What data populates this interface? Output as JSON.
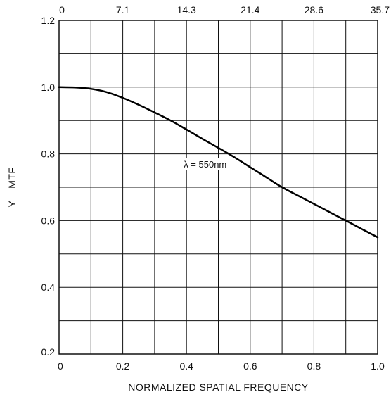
{
  "chart_data": {
    "type": "line",
    "title": "",
    "xlabel": "NORMALIZED SPATIAL FREQUENCY",
    "ylabel": "Y – MTF",
    "xlim": [
      0,
      1.0
    ],
    "ylim": [
      0.2,
      1.2
    ],
    "grid": true,
    "x_ticks": [
      0,
      0.1,
      0.2,
      0.3,
      0.4,
      0.5,
      0.6,
      0.7,
      0.8,
      0.9,
      1.0
    ],
    "x_tick_labels": [
      "0",
      "0.2",
      "0.4",
      "0.6",
      "0.8",
      "1.0"
    ],
    "x_tick_label_values": [
      0,
      0.2,
      0.4,
      0.6,
      0.8,
      1.0
    ],
    "y_ticks": [
      0.2,
      0.3,
      0.4,
      0.5,
      0.6,
      0.7,
      0.8,
      0.9,
      1.0,
      1.1,
      1.2
    ],
    "y_tick_labels": [
      "0.2",
      "0.4",
      "0.6",
      "0.8",
      "1.0",
      "1.2"
    ],
    "y_tick_label_values": [
      0.2,
      0.4,
      0.6,
      0.8,
      1.0,
      1.2
    ],
    "top_axis_tick_labels": [
      "0",
      "7.1",
      "14.3",
      "21.4",
      "28.6",
      "35.7"
    ],
    "top_axis_tick_values": [
      0,
      0.2,
      0.4,
      0.6,
      0.8,
      1.0
    ],
    "annotation": {
      "text": "λ = 550nm",
      "x": 0.4,
      "y": 0.77
    },
    "series": [
      {
        "x": [
          0,
          0.05,
          0.1,
          0.15,
          0.2,
          0.25,
          0.3,
          0.35,
          0.4,
          0.45,
          0.5,
          0.55,
          0.6,
          0.65,
          0.7,
          0.75,
          0.8,
          0.85,
          0.9,
          0.95,
          1.0
        ],
        "values": [
          1.0,
          0.999,
          0.995,
          0.985,
          0.968,
          0.947,
          0.924,
          0.9,
          0.873,
          0.845,
          0.818,
          0.79,
          0.76,
          0.73,
          0.7,
          0.675,
          0.65,
          0.625,
          0.6,
          0.575,
          0.55
        ]
      }
    ]
  }
}
